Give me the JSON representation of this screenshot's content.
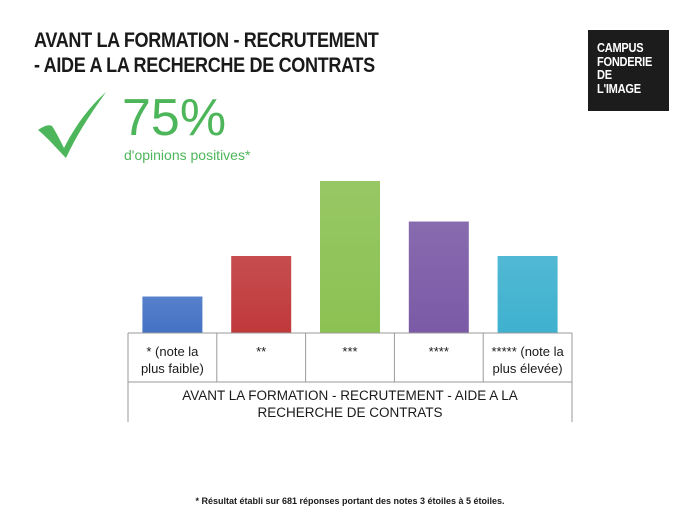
{
  "title": {
    "line1": "AVANT LA FORMATION - RECRUTEMENT",
    "line2": "- AIDE A LA RECHERCHE DE CONTRATS"
  },
  "logo": {
    "line1": "CAMPUS",
    "line2": "FONDERIE",
    "line3": "DE",
    "line4": "L'IMAGE"
  },
  "highlight": {
    "percent": "75%",
    "caption": "d'opinions positives*",
    "icon": "checkmark-icon",
    "color": "#4eb65a"
  },
  "footnote": "* Résultat établi sur 681 réponses portant des notes 3 étoiles à 5 étoiles.",
  "chart_data": {
    "type": "bar",
    "categories": [
      "* (note la plus faible)",
      "**",
      "***",
      "****",
      "***** (note la plus élevée)"
    ],
    "category_lines": [
      [
        "* (note la",
        "plus faible)"
      ],
      [
        "**"
      ],
      [
        "***"
      ],
      [
        "****"
      ],
      [
        "***** (note la",
        "plus élevée)"
      ]
    ],
    "values": [
      18,
      38,
      75,
      55,
      38
    ],
    "colors": [
      "#4472c4",
      "#c0393b",
      "#8cc153",
      "#7b5aa6",
      "#3eb1cf"
    ],
    "xlabel_lines": [
      "AVANT LA FORMATION - RECRUTEMENT - AIDE A LA",
      "RECHERCHE DE CONTRATS"
    ],
    "ylim": [
      0,
      75
    ],
    "grid": false,
    "legend": "none"
  }
}
